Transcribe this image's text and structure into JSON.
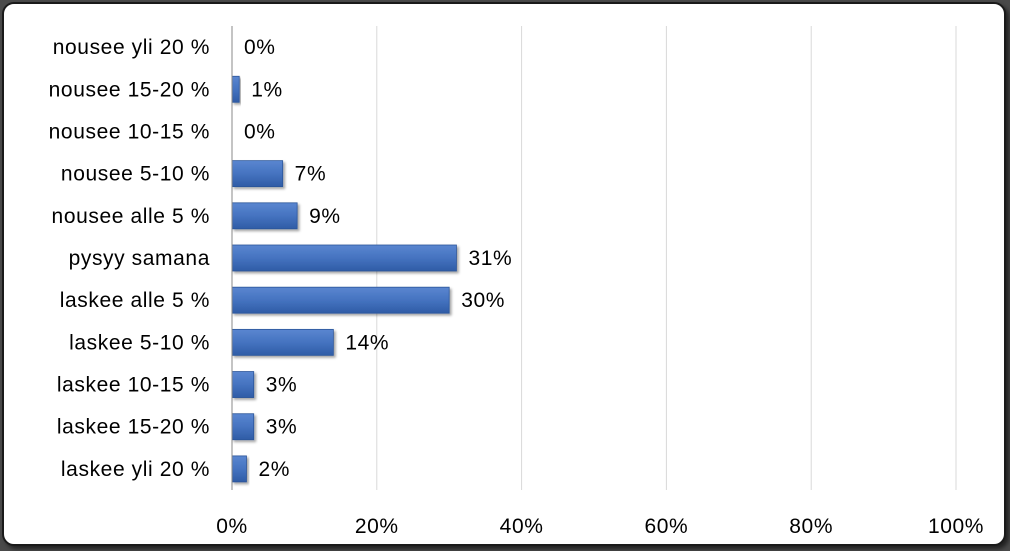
{
  "chart_data": {
    "type": "bar",
    "orientation": "horizontal",
    "categories": [
      "nousee yli 20 %",
      "nousee 15-20 %",
      "nousee 10-15 %",
      "nousee 5-10 %",
      "nousee alle 5 %",
      "pysyy samana",
      "laskee alle 5 %",
      "laskee 5-10 %",
      "laskee 10-15 %",
      "laskee 15-20 %",
      "laskee yli 20 %"
    ],
    "values": [
      0,
      1,
      0,
      7,
      9,
      31,
      30,
      14,
      3,
      3,
      2
    ],
    "value_labels": [
      "0%",
      "1%",
      "0%",
      "7%",
      "9%",
      "31%",
      "30%",
      "14%",
      "3%",
      "3%",
      "2%"
    ],
    "xlim": [
      0,
      100
    ],
    "x_ticks": [
      0,
      20,
      40,
      60,
      80,
      100
    ],
    "x_tick_labels": [
      "0%",
      "20%",
      "40%",
      "60%",
      "80%",
      "100%"
    ],
    "grid": true,
    "legend": "none",
    "colors": {
      "bar": "#4573c0",
      "bar_dark": "#2b5499",
      "grid": "#d9d9d9",
      "axis": "#888888"
    }
  }
}
